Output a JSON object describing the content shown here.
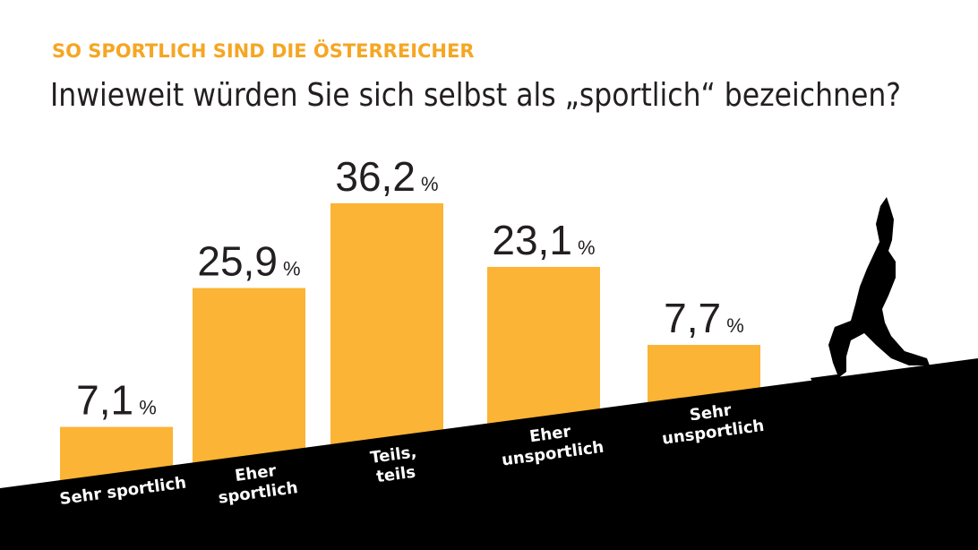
{
  "chart_data": {
    "type": "bar",
    "title": "SO  SPORTLICH SIND DIE ÖSTERREICHER",
    "subtitle": "Inwieweit würden Sie sich selbst als „sportlich“ bezeichnen?",
    "categories": [
      "Sehr sportlich",
      "Eher\nsportlich",
      "Teils,\nteils",
      "Eher\nunsportlich",
      "Sehr\nunsportlich"
    ],
    "values": [
      7.1,
      25.9,
      36.2,
      23.1,
      7.7
    ],
    "value_labels": [
      "7,1 %",
      "25,9 %",
      "36,2 %",
      "23,1 %",
      "7,7 %"
    ],
    "color": "#fbb435"
  }
}
